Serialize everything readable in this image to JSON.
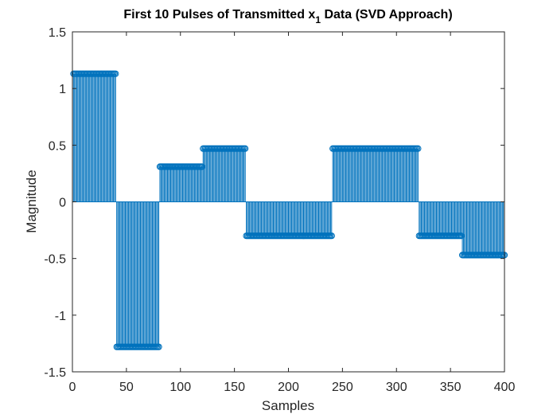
{
  "chart_data": {
    "type": "stem",
    "title": {
      "prefix": "First 10 Pulses of Transmitted x",
      "subscript": "1",
      "suffix": " Data (SVD Approach)"
    },
    "xlabel": "Samples",
    "ylabel": "Magnitude",
    "xlim": [
      0,
      400
    ],
    "ylim": [
      -1.5,
      1.5
    ],
    "xticks": [
      0,
      50,
      100,
      150,
      200,
      250,
      300,
      350,
      400
    ],
    "yticks": [
      -1.5,
      -1,
      -0.5,
      0,
      0.5,
      1,
      1.5
    ],
    "xtick_labels": [
      "0",
      "50",
      "100",
      "150",
      "200",
      "250",
      "300",
      "350",
      "400"
    ],
    "ytick_labels": [
      "-1.5",
      "-1",
      "-0.5",
      "0",
      "0.5",
      "1",
      "1.5"
    ],
    "grid": false,
    "color": "#0072BD",
    "samples_per_pulse": 40,
    "pulses": [
      {
        "start": 1,
        "end": 40,
        "value": 1.13
      },
      {
        "start": 41,
        "end": 80,
        "value": -1.28
      },
      {
        "start": 81,
        "end": 120,
        "value": 0.31
      },
      {
        "start": 121,
        "end": 160,
        "value": 0.47
      },
      {
        "start": 161,
        "end": 200,
        "value": -0.3
      },
      {
        "start": 201,
        "end": 240,
        "value": -0.3
      },
      {
        "start": 241,
        "end": 280,
        "value": 0.47
      },
      {
        "start": 281,
        "end": 320,
        "value": 0.47
      },
      {
        "start": 321,
        "end": 360,
        "value": -0.3
      },
      {
        "start": 361,
        "end": 400,
        "value": -0.47
      }
    ]
  }
}
